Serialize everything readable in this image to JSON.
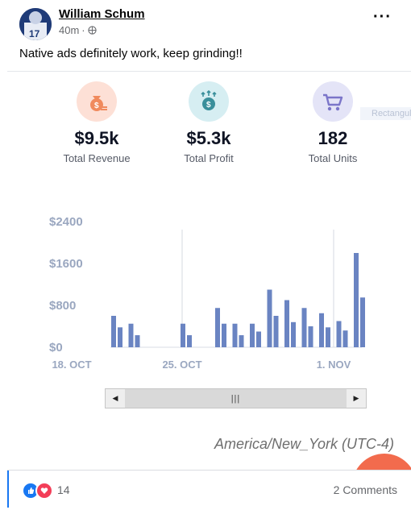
{
  "post": {
    "author": "William Schum",
    "time": "40m",
    "text": "Native ads definitely work, keep grinding!!",
    "reaction_count": "14",
    "comments_label": "2 Comments"
  },
  "kpis": [
    {
      "value": "$9.5k",
      "label": "Total Revenue",
      "color": "#fde0d6"
    },
    {
      "value": "$5.3k",
      "label": "Total Profit",
      "color": "#d6eef2"
    },
    {
      "value": "182",
      "label": "Total Units",
      "color": "#e4e4f7"
    }
  ],
  "ghost_label": "Rectangula",
  "timezone": "America/New_York (UTC-4)",
  "colors": {
    "bar": "#6a84c2",
    "accent": "#1877f2",
    "orange": "#f26b4d"
  },
  "chart_data": {
    "type": "bar",
    "y_ticks": [
      "$2400",
      "$1600",
      "$800",
      "$0"
    ],
    "ylim": [
      0,
      2400
    ],
    "x_ticks": [
      "18. OCT",
      "25. OCT",
      "1. NOV"
    ],
    "series": [
      {
        "values": [
          600,
          450,
          0,
          0,
          450,
          1,
          750,
          450,
          450,
          1100,
          900,
          750,
          650,
          500,
          1800
        ]
      },
      {
        "values": [
          380,
          230,
          0,
          0,
          230,
          0,
          450,
          230,
          300,
          600,
          480,
          400,
          380,
          320,
          950
        ]
      }
    ]
  }
}
